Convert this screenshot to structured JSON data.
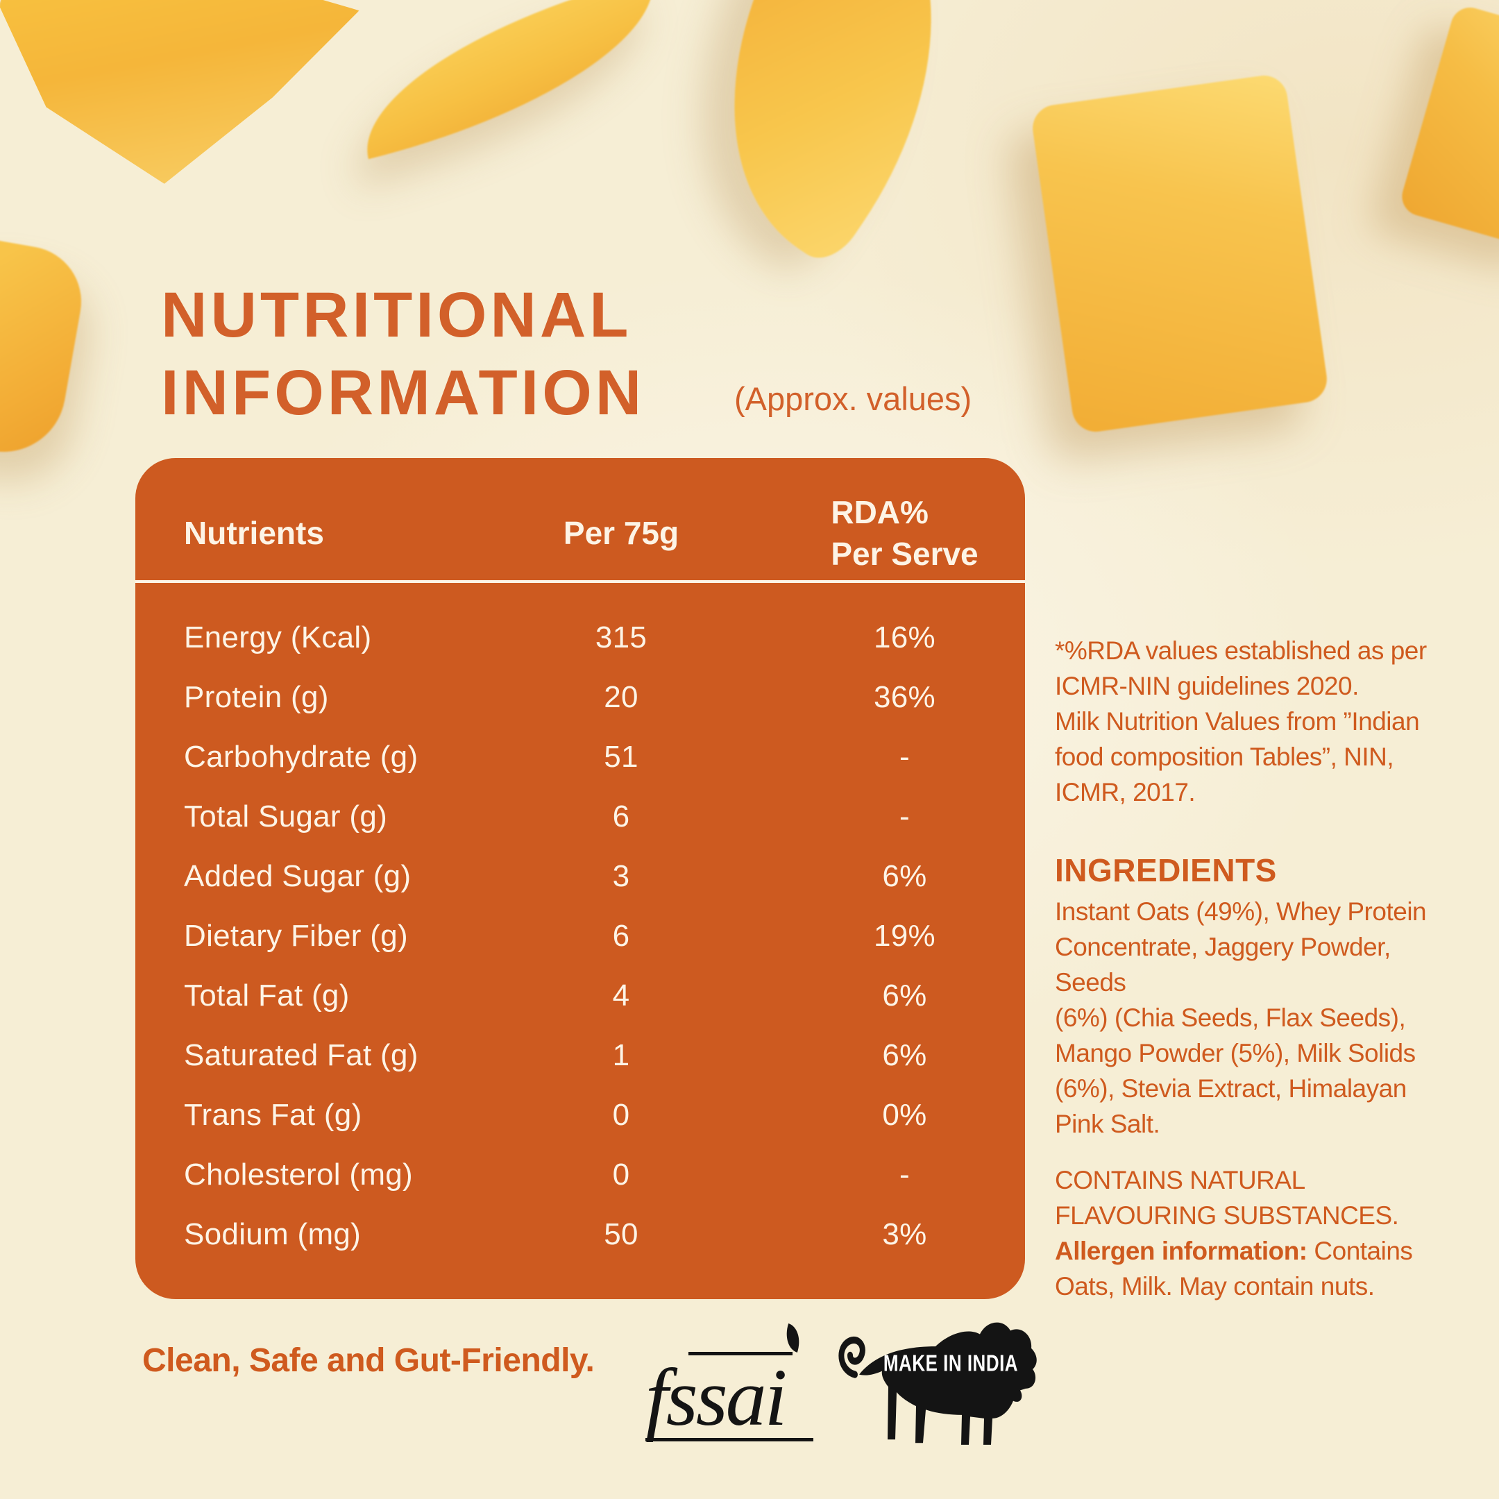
{
  "colors": {
    "background_cream": "#f6eed5",
    "accent_orange": "#cd5a20",
    "title_orange": "#d2602a",
    "panel_text": "#fdf4e6",
    "mango_yellow": "#f7c048",
    "logo_black": "#141414"
  },
  "title": {
    "line1": "NUTRITIONAL",
    "line2": "INFORMATION",
    "approx": "(Approx. values)"
  },
  "table": {
    "col_nutrients": "Nutrients",
    "col_per": "Per 75g",
    "col_rda_line1": "RDA%",
    "col_rda_line2": "Per Serve",
    "rows": [
      {
        "nutrient": "Energy (Kcal)",
        "per75g": "315",
        "rda": "16%"
      },
      {
        "nutrient": "Protein (g)",
        "per75g": "20",
        "rda": "36%"
      },
      {
        "nutrient": "Carbohydrate (g)",
        "per75g": "51",
        "rda": "-"
      },
      {
        "nutrient": "Total Sugar (g)",
        "per75g": "6",
        "rda": "-"
      },
      {
        "nutrient": "Added Sugar (g)",
        "per75g": "3",
        "rda": "6%"
      },
      {
        "nutrient": "Dietary Fiber (g)",
        "per75g": "6",
        "rda": "19%"
      },
      {
        "nutrient": "Total Fat (g)",
        "per75g": "4",
        "rda": "6%"
      },
      {
        "nutrient": "Saturated Fat (g)",
        "per75g": "1",
        "rda": "6%"
      },
      {
        "nutrient": "Trans Fat (g)",
        "per75g": "0",
        "rda": "0%"
      },
      {
        "nutrient": "Cholesterol (mg)",
        "per75g": "0",
        "rda": "-"
      },
      {
        "nutrient": "Sodium (mg)",
        "per75g": "50",
        "rda": "3%"
      }
    ]
  },
  "rda_note": {
    "lines": [
      "*%RDA values established as per",
      "ICMR-NIN guidelines 2020.",
      "Milk Nutrition Values from ”Indian",
      "food composition Tables”, NIN,",
      "ICMR, 2017."
    ]
  },
  "ingredients": {
    "heading": "INGREDIENTS",
    "lines": [
      "Instant Oats (49%), Whey Protein",
      "Concentrate, Jaggery Powder,",
      "Seeds",
      "(6%) (Chia Seeds, Flax Seeds),",
      "Mango Powder (5%), Milk Solids",
      "(6%), Stevia Extract, Himalayan",
      "Pink Salt."
    ]
  },
  "allergen": {
    "contains_lines": [
      "CONTAINS NATURAL",
      "FLAVOURING SUBSTANCES."
    ],
    "bold_label": "Allergen information:",
    "rest_line1": " Contains",
    "rest_line2": "Oats, Milk. May contain nuts."
  },
  "footer": {
    "tagline": "Clean, Safe and Gut-Friendly.",
    "fssai_text": "fssai",
    "make_in_india_text": "MAKE IN INDIA"
  },
  "decor": {
    "mango_pieces": [
      "mango-wedge-top-left",
      "mango-slice-top-center",
      "mango-slice-top-right",
      "mango-cube-right",
      "mango-cube-right-edge",
      "mango-chunk-left-edge"
    ]
  }
}
